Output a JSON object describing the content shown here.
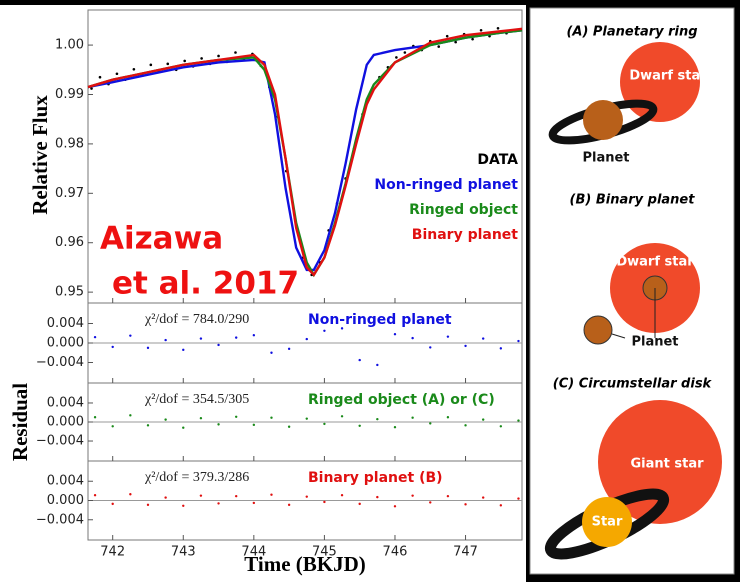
{
  "chart_data": [
    {
      "type": "line",
      "ylabel": "Relative Flux",
      "annotations": [
        "Aizawa",
        "et al. 2017"
      ],
      "xlim": [
        741.65,
        747.8
      ],
      "ylim": [
        0.9478,
        1.0071
      ],
      "yticks": [
        0.95,
        0.96,
        0.97,
        0.98,
        0.99,
        {
          "value": 1,
          "label": "1.00"
        }
      ],
      "legend": "right",
      "x": [
        741.65,
        742,
        742.5,
        743,
        743.5,
        744,
        744.15,
        744.3,
        744.45,
        744.6,
        744.75,
        744.85,
        745,
        745.15,
        745.3,
        745.45,
        745.6,
        745.7,
        746,
        746.5,
        747,
        747.5,
        747.8
      ],
      "series": [
        {
          "name": "DATA",
          "color": "#000000",
          "type": "scatter",
          "x": [
            741.7,
            741.82,
            741.94,
            742.06,
            742.18,
            742.3,
            742.42,
            742.54,
            742.66,
            742.78,
            742.9,
            743.02,
            743.14,
            743.26,
            743.38,
            743.5,
            743.62,
            743.74,
            743.86,
            743.98,
            744.1,
            744.22,
            744.34,
            744.46,
            744.58,
            744.7,
            744.82,
            744.94,
            745.06,
            745.18,
            745.3,
            745.42,
            745.54,
            745.66,
            745.78,
            745.9,
            746.02,
            746.14,
            746.26,
            746.38,
            746.5,
            746.62,
            746.74,
            746.86,
            746.98,
            747.1,
            747.22,
            747.34,
            747.46,
            747.58
          ],
          "values": [
            0.9912,
            0.9935,
            0.9921,
            0.9942,
            0.993,
            0.9951,
            0.9938,
            0.996,
            0.9947,
            0.9962,
            0.995,
            0.9968,
            0.9957,
            0.9973,
            0.9962,
            0.9978,
            0.9966,
            0.9985,
            0.9971,
            0.9982,
            0.9958,
            0.9915,
            0.9855,
            0.9745,
            0.965,
            0.957,
            0.9535,
            0.956,
            0.9625,
            0.968,
            0.973,
            0.979,
            0.986,
            0.9905,
            0.9935,
            0.9955,
            0.9975,
            0.9985,
            0.9998,
            0.999,
            1.0008,
            0.9997,
            1.0018,
            1.0006,
            1.0022,
            1.0012,
            1.003,
            1.0018,
            1.0034,
            1.0024
          ]
        },
        {
          "name": "Non-ringed planet",
          "color": "#1010e0",
          "values": [
            0.9915,
            0.9925,
            0.994,
            0.9955,
            0.9965,
            0.997,
            0.9965,
            0.986,
            0.971,
            0.959,
            0.9545,
            0.9545,
            0.9585,
            0.966,
            0.976,
            0.987,
            0.996,
            0.998,
            0.999,
            1.0,
            1.0015,
            1.0025,
            1.003
          ]
        },
        {
          "name": "Ringed object",
          "color": "#1a8a1a",
          "values": [
            0.9915,
            0.993,
            0.9945,
            0.996,
            0.997,
            0.9975,
            0.995,
            0.989,
            0.977,
            0.964,
            0.956,
            0.9535,
            0.957,
            0.964,
            0.972,
            0.981,
            0.989,
            0.992,
            0.9965,
            1.0,
            1.0015,
            1.0025,
            1.003
          ]
        },
        {
          "name": "Binary planet",
          "color": "#e01010",
          "values": [
            0.9915,
            0.993,
            0.9945,
            0.996,
            0.997,
            0.998,
            0.996,
            0.99,
            0.977,
            0.963,
            0.955,
            0.9535,
            0.957,
            0.9635,
            0.9715,
            0.98,
            0.988,
            0.991,
            0.9965,
            1.0005,
            1.002,
            1.0028,
            1.0033
          ]
        }
      ]
    },
    {
      "type": "scatter",
      "statistic": "χ²/dof = 784.0/290",
      "label": "Non-ringed planet",
      "color": "#1010e0",
      "xlim": [
        741.65,
        747.8
      ],
      "ylim": [
        -0.0082,
        0.0082
      ],
      "hline": 0,
      "yticks": [
        0.004,
        {
          "value": 0,
          "label": "0.000"
        },
        {
          "value": -0.004,
          "label": "−0.004"
        }
      ],
      "x": [
        741.75,
        742,
        742.25,
        742.5,
        742.75,
        743,
        743.25,
        743.5,
        743.75,
        744,
        744.25,
        744.5,
        744.75,
        745,
        745.25,
        745.5,
        745.75,
        746,
        746.25,
        746.5,
        746.75,
        747,
        747.25,
        747.5,
        747.75
      ],
      "values": [
        0.0012,
        -0.0008,
        0.0015,
        -0.001,
        0.0006,
        -0.0014,
        0.0009,
        -0.0004,
        0.0011,
        0.0016,
        -0.002,
        -0.0012,
        0.0008,
        0.0025,
        0.003,
        -0.0035,
        -0.0045,
        0.0018,
        0.001,
        -0.0009,
        0.0013,
        -0.0006,
        0.0009,
        -0.0011,
        0.0004
      ]
    },
    {
      "type": "scatter",
      "statistic": "χ²/dof = 354.5/305",
      "label": "Ringed object (A) or (C)",
      "color": "#1a8a1a",
      "ylabel": "Residual",
      "xlim": [
        741.65,
        747.8
      ],
      "ylim": [
        -0.0082,
        0.0082
      ],
      "hline": 0,
      "yticks": [
        0.004,
        {
          "value": 0,
          "label": "0.000"
        },
        {
          "value": -0.004,
          "label": "−0.004"
        }
      ],
      "x": [
        741.75,
        742,
        742.25,
        742.5,
        742.75,
        743,
        743.25,
        743.5,
        743.75,
        744,
        744.25,
        744.5,
        744.75,
        745,
        745.25,
        745.5,
        745.75,
        746,
        746.25,
        746.5,
        746.75,
        747,
        747.25,
        747.5,
        747.75
      ],
      "values": [
        0.001,
        -0.0009,
        0.0014,
        -0.0007,
        0.0005,
        -0.0012,
        0.0008,
        -0.0005,
        0.0011,
        -0.0006,
        0.0009,
        -0.001,
        0.0007,
        -0.0004,
        0.0012,
        -0.0008,
        0.0006,
        -0.0011,
        0.0009,
        -0.0003,
        0.001,
        -0.0007,
        0.0005,
        -0.0009,
        0.0003
      ]
    },
    {
      "type": "scatter",
      "statistic": "χ²/dof = 379.3/286",
      "label": "Binary planet (B)",
      "color": "#e01010",
      "xlabel": "Time (BKJD)",
      "xlim": [
        741.65,
        747.8
      ],
      "ylim": [
        -0.0082,
        0.0082
      ],
      "hline": 0,
      "yticks": [
        0.004,
        {
          "value": 0,
          "label": "0.000"
        },
        {
          "value": -0.004,
          "label": "−0.004"
        }
      ],
      "xticks": [
        742,
        743,
        744,
        745,
        746,
        747
      ],
      "x": [
        741.75,
        742,
        742.25,
        742.5,
        742.75,
        743,
        743.25,
        743.5,
        743.75,
        744,
        744.25,
        744.5,
        744.75,
        745,
        745.25,
        745.5,
        745.75,
        746,
        746.25,
        746.5,
        746.75,
        747,
        747.25,
        747.5,
        747.75
      ],
      "values": [
        0.0011,
        -0.0007,
        0.0013,
        -0.0009,
        0.0006,
        -0.0011,
        0.001,
        -0.0006,
        0.0009,
        -0.0005,
        0.0012,
        -0.0009,
        0.0008,
        -0.0003,
        0.0011,
        -0.0007,
        0.0007,
        -0.0012,
        0.001,
        -0.0004,
        0.0009,
        -0.0008,
        0.0006,
        -0.001,
        0.0004
      ]
    }
  ],
  "diagram": {
    "panels": [
      {
        "title": "(A) Planetary ring",
        "star": "Dwarf star",
        "body": "Planet"
      },
      {
        "title": "(B) Binary planet",
        "star": "Dwarf star",
        "body": "Planet"
      },
      {
        "title": "(C) Circumstellar disk",
        "star": "Giant star",
        "body": "Star"
      }
    ]
  }
}
